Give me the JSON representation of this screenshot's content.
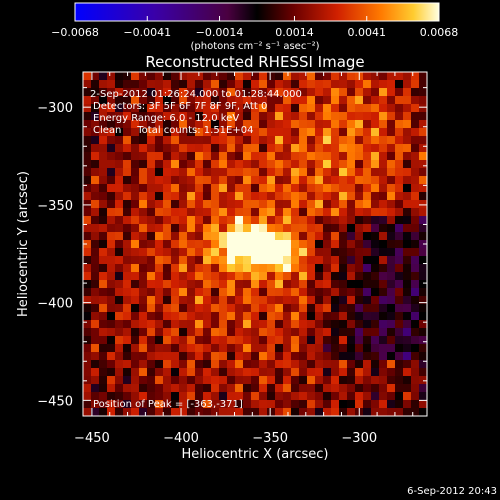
{
  "chart_data": {
    "type": "heatmap",
    "title": "Reconstructed RHESSI Image",
    "xlabel": "Heliocentric X (arcsec)",
    "ylabel": "Heliocentric Y (arcsec)",
    "xlim": [
      -455,
      -262
    ],
    "ylim": [
      -458,
      -282
    ],
    "x_ticks": [
      -450,
      -400,
      -350,
      -300
    ],
    "y_ticks": [
      -300,
      -350,
      -400,
      -450
    ],
    "colorbar": {
      "range": [
        -0.0068,
        0.0068
      ],
      "ticks": [
        -0.0068,
        -0.0041,
        -0.0014,
        0.0014,
        0.0041,
        0.0068
      ],
      "tick_labels": [
        "-0.0068",
        "-0.0041",
        "-0.0014",
        "0.0014",
        "0.0041",
        "0.0068"
      ],
      "unit": "(photons cm⁻² s⁻¹ asec⁻²)"
    },
    "peak": {
      "x": -363,
      "y": -371,
      "value": 0.0068
    },
    "annotations": [
      "2-Sep-2012 01:26:24.000 to 01:28:44.000",
      "Detectors: 3F 5F 6F 7F 8F 9F, Att 0",
      "Energy Range: 6.0 - 12.0 keV",
      "Clean     Total counts: 1.51E+04"
    ],
    "peak_label": "Position of Peak = [-363,-371]",
    "footer_date": "6-Sep-2012 20:43"
  }
}
